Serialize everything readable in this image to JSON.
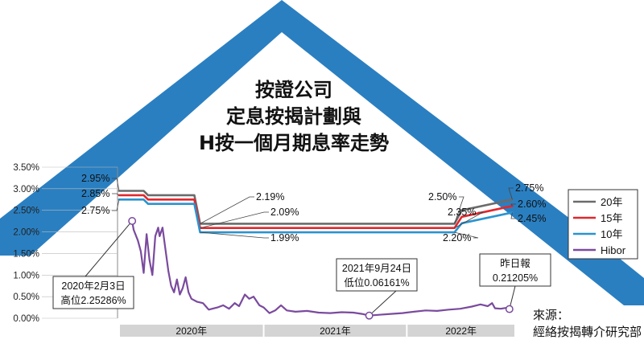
{
  "chart_data": {
    "type": "line",
    "title_lines": [
      "按證公司",
      "定息按揭計劃與",
      "H按一個月期息率走勢"
    ],
    "y_ticks": [
      "3.50%",
      "3.00%",
      "2.50%",
      "2.00%",
      "1.50%",
      "1.00%",
      "0.50%",
      "0.00%"
    ],
    "ylim": [
      0,
      3.5
    ],
    "x_range": [
      2020.0,
      2022.74
    ],
    "x_bands": [
      {
        "label": "2020年",
        "start": 2020.0,
        "end": 2021.0
      },
      {
        "label": "2021年",
        "start": 2021.0,
        "end": 2021.99
      },
      {
        "label": "2022年",
        "start": 2021.99,
        "end": 2022.74
      }
    ],
    "legend": [
      "20年",
      "15年",
      "10年",
      "Hibor"
    ],
    "colors": {
      "20年": "#6b6b6b",
      "15年": "#e0282e",
      "10年": "#2a94cf",
      "Hibor": "#7a4a9e",
      "accent": "#2a7fc1"
    },
    "series": [
      {
        "name": "20年",
        "points": [
          [
            2020.0,
            2.95
          ],
          [
            2020.09,
            2.95
          ],
          [
            2020.17,
            2.95
          ],
          [
            2020.2,
            2.85
          ],
          [
            2020.52,
            2.85
          ],
          [
            2020.56,
            2.19
          ],
          [
            2022.32,
            2.19
          ],
          [
            2022.37,
            2.5
          ],
          [
            2022.72,
            2.75
          ]
        ]
      },
      {
        "name": "15年",
        "points": [
          [
            2020.0,
            2.85
          ],
          [
            2020.09,
            2.85
          ],
          [
            2020.17,
            2.85
          ],
          [
            2020.2,
            2.75
          ],
          [
            2020.52,
            2.75
          ],
          [
            2020.56,
            2.09
          ],
          [
            2022.32,
            2.09
          ],
          [
            2022.37,
            2.35
          ],
          [
            2022.72,
            2.6
          ]
        ]
      },
      {
        "name": "10年",
        "points": [
          [
            2020.0,
            2.75
          ],
          [
            2020.09,
            2.75
          ],
          [
            2020.17,
            2.75
          ],
          [
            2020.2,
            2.65
          ],
          [
            2020.52,
            2.65
          ],
          [
            2020.56,
            1.99
          ],
          [
            2022.32,
            1.99
          ],
          [
            2022.37,
            2.2
          ],
          [
            2022.72,
            2.45
          ]
        ]
      },
      {
        "name": "Hibor",
        "points": [
          [
            2020.09,
            2.25
          ],
          [
            2020.1,
            2.05
          ],
          [
            2020.13,
            1.8
          ],
          [
            2020.15,
            1.55
          ],
          [
            2020.17,
            1.05
          ],
          [
            2020.19,
            1.95
          ],
          [
            2020.21,
            1.35
          ],
          [
            2020.23,
            1.0
          ],
          [
            2020.25,
            1.9
          ],
          [
            2020.27,
            2.1
          ],
          [
            2020.28,
            1.9
          ],
          [
            2020.3,
            2.1
          ],
          [
            2020.32,
            1.6
          ],
          [
            2020.34,
            1.1
          ],
          [
            2020.36,
            0.75
          ],
          [
            2020.38,
            0.6
          ],
          [
            2020.4,
            0.9
          ],
          [
            2020.42,
            0.55
          ],
          [
            2020.44,
            0.7
          ],
          [
            2020.46,
            0.95
          ],
          [
            2020.48,
            0.6
          ],
          [
            2020.5,
            0.45
          ],
          [
            2020.54,
            0.38
          ],
          [
            2020.58,
            0.35
          ],
          [
            2020.62,
            0.2
          ],
          [
            2020.68,
            0.25
          ],
          [
            2020.72,
            0.3
          ],
          [
            2020.76,
            0.22
          ],
          [
            2020.8,
            0.35
          ],
          [
            2020.83,
            0.28
          ],
          [
            2020.87,
            0.55
          ],
          [
            2020.9,
            0.45
          ],
          [
            2020.93,
            0.5
          ],
          [
            2020.97,
            0.3
          ],
          [
            2021.0,
            0.25
          ],
          [
            2021.04,
            0.12
          ],
          [
            2021.08,
            0.18
          ],
          [
            2021.12,
            0.3
          ],
          [
            2021.16,
            0.18
          ],
          [
            2021.22,
            0.15
          ],
          [
            2021.3,
            0.17
          ],
          [
            2021.38,
            0.13
          ],
          [
            2021.46,
            0.12
          ],
          [
            2021.54,
            0.14
          ],
          [
            2021.62,
            0.13
          ],
          [
            2021.68,
            0.1
          ],
          [
            2021.73,
            0.06161
          ],
          [
            2021.8,
            0.08
          ],
          [
            2021.88,
            0.1
          ],
          [
            2021.96,
            0.12
          ],
          [
            2022.04,
            0.15
          ],
          [
            2022.12,
            0.18
          ],
          [
            2022.2,
            0.17
          ],
          [
            2022.28,
            0.2
          ],
          [
            2022.36,
            0.22
          ],
          [
            2022.44,
            0.27
          ],
          [
            2022.5,
            0.32
          ],
          [
            2022.55,
            0.28
          ],
          [
            2022.58,
            0.35
          ],
          [
            2022.6,
            0.23
          ],
          [
            2022.64,
            0.22
          ],
          [
            2022.68,
            0.24
          ],
          [
            2022.7,
            0.21205
          ]
        ]
      }
    ],
    "line_labels": [
      {
        "text": "2.95%",
        "x": 2020.0,
        "y": 2.95,
        "side": "left"
      },
      {
        "text": "2.85%",
        "x": 2020.0,
        "y": 2.85,
        "side": "left"
      },
      {
        "text": "2.75%",
        "x": 2020.0,
        "y": 2.75,
        "side": "left"
      },
      {
        "text": "2.19%",
        "x": 2020.56,
        "y": 2.19,
        "side": "right"
      },
      {
        "text": "2.09%",
        "x": 2020.56,
        "y": 2.09,
        "side": "right"
      },
      {
        "text": "1.99%",
        "x": 2020.56,
        "y": 1.99,
        "side": "right"
      },
      {
        "text": "2.50%",
        "x": 2022.32,
        "y": 2.19,
        "side": "left"
      },
      {
        "text": "2.35%",
        "x": 2022.32,
        "y": 2.09,
        "side": "left"
      },
      {
        "text": "2.20%",
        "x": 2022.32,
        "y": 1.99,
        "side": "left"
      },
      {
        "text": "2.75%",
        "x": 2022.72,
        "y": 2.75,
        "side": "right"
      },
      {
        "text": "2.60%",
        "x": 2022.72,
        "y": 2.6,
        "side": "right"
      },
      {
        "text": "2.45%",
        "x": 2022.72,
        "y": 2.45,
        "side": "right"
      }
    ],
    "annotations": [
      {
        "lines": [
          "2020年2月3日",
          "高位2.25286%"
        ],
        "x": 2020.09,
        "y": 2.25286
      },
      {
        "lines": [
          "2021年9月24日",
          "低位0.06161%"
        ],
        "x": 2021.73,
        "y": 0.06161
      },
      {
        "lines": [
          "昨日報",
          "0.21205%"
        ],
        "x": 2022.7,
        "y": 0.21205
      }
    ],
    "source": [
      "來源：",
      "經絡按揭轉介研究部"
    ]
  }
}
